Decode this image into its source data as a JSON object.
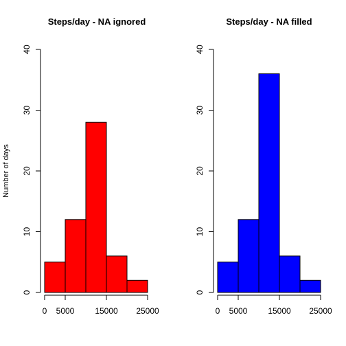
{
  "chart_data": [
    {
      "type": "bar",
      "title": "Steps/day - NA ignored",
      "xlabel": "",
      "ylabel": "Number of days",
      "bins": [
        [
          0,
          5000
        ],
        [
          5000,
          10000
        ],
        [
          10000,
          15000
        ],
        [
          15000,
          20000
        ],
        [
          20000,
          25000
        ]
      ],
      "values": [
        5,
        12,
        28,
        6,
        2
      ],
      "color": "#ff0000",
      "xlim": [
        0,
        25000
      ],
      "ylim": [
        0,
        40
      ],
      "xticks": [
        0,
        5000,
        15000,
        25000
      ],
      "xtick_labels": [
        "0",
        "5000",
        "15000",
        "25000"
      ],
      "yticks": [
        0,
        10,
        20,
        30,
        40
      ],
      "ytick_labels": [
        "0",
        "10",
        "20",
        "30",
        "40"
      ],
      "grid": false
    },
    {
      "type": "bar",
      "title": "Steps/day - NA filled",
      "xlabel": "",
      "ylabel": "",
      "bins": [
        [
          0,
          5000
        ],
        [
          5000,
          10000
        ],
        [
          10000,
          15000
        ],
        [
          15000,
          20000
        ],
        [
          20000,
          25000
        ]
      ],
      "values": [
        5,
        12,
        36,
        6,
        2
      ],
      "color": "#0000ff",
      "xlim": [
        0,
        25000
      ],
      "ylim": [
        0,
        40
      ],
      "xticks": [
        0,
        5000,
        15000,
        25000
      ],
      "xtick_labels": [
        "0",
        "5000",
        "15000",
        "25000"
      ],
      "yticks": [
        0,
        10,
        20,
        30,
        40
      ],
      "ytick_labels": [
        "0",
        "10",
        "20",
        "30",
        "40"
      ],
      "grid": false
    }
  ]
}
